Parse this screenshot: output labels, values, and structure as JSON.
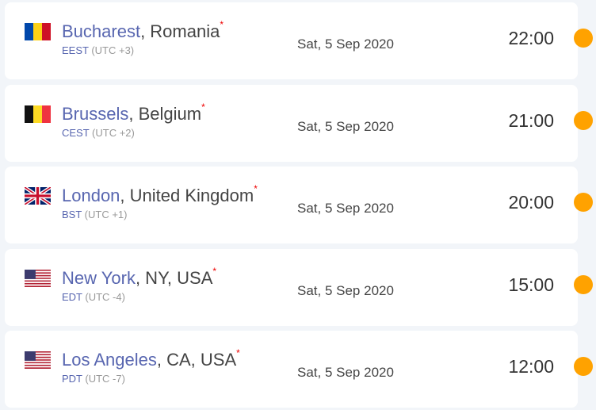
{
  "accent": "#ffa200",
  "cities": [
    {
      "city": "Bucharest",
      "region": ", Romania",
      "star": "*",
      "abbr": "EEST",
      "utc": " (UTC +3)",
      "date": "Sat, 5 Sep 2020",
      "time": "22:00",
      "flag": "romania-flag-icon"
    },
    {
      "city": "Brussels",
      "region": ", Belgium",
      "star": "*",
      "abbr": "CEST",
      "utc": " (UTC +2)",
      "date": "Sat, 5 Sep 2020",
      "time": "21:00",
      "flag": "belgium-flag-icon"
    },
    {
      "city": "London",
      "region": ", United Kingdom",
      "star": "*",
      "abbr": "BST",
      "utc": " (UTC +1)",
      "date": "Sat, 5 Sep 2020",
      "time": "20:00",
      "flag": "uk-flag-icon"
    },
    {
      "city": "New York",
      "region": ", NY, USA",
      "star": "*",
      "abbr": "EDT",
      "utc": " (UTC -4)",
      "date": "Sat, 5 Sep 2020",
      "time": "15:00",
      "flag": "usa-flag-icon"
    },
    {
      "city": "Los Angeles",
      "region": ", CA, USA",
      "star": "*",
      "abbr": "PDT",
      "utc": " (UTC -7)",
      "date": "Sat, 5 Sep 2020",
      "time": "12:00",
      "flag": "usa-flag-icon"
    }
  ]
}
